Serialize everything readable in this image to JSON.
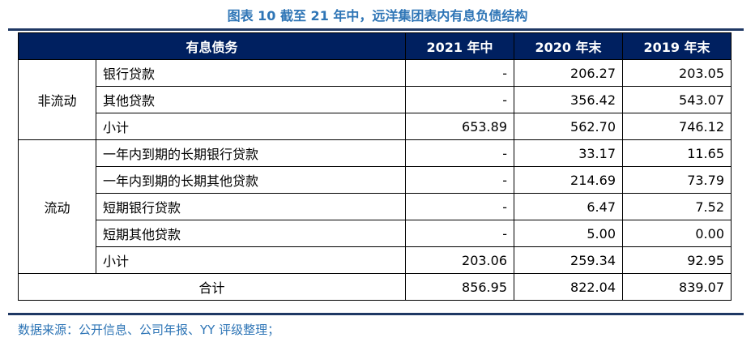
{
  "title": "图表 10 截至 21 年中，远洋集团表内有息负债结构",
  "header": [
    "有息债务",
    "2021 年中",
    "2020 年末",
    "2019 年末"
  ],
  "groups": [
    {
      "label": "非流动",
      "rows": [
        {
          "item": "银行贷款",
          "v": [
            "-",
            "206.27",
            "203.05"
          ]
        },
        {
          "item": "其他贷款",
          "v": [
            "-",
            "356.42",
            "543.07"
          ]
        },
        {
          "item": "小计",
          "v": [
            "653.89",
            "562.70",
            "746.12"
          ]
        }
      ]
    },
    {
      "label": "流动",
      "rows": [
        {
          "item": "一年内到期的长期银行贷款",
          "v": [
            "-",
            "33.17",
            "11.65"
          ]
        },
        {
          "item": "一年内到期的长期其他贷款",
          "v": [
            "-",
            "214.69",
            "73.79"
          ]
        },
        {
          "item": "短期银行贷款",
          "v": [
            "-",
            "6.47",
            "7.52"
          ]
        },
        {
          "item": "短期其他贷款",
          "v": [
            "-",
            "5.00",
            "0.00"
          ]
        },
        {
          "item": "小计",
          "v": [
            "203.06",
            "259.34",
            "92.95"
          ]
        }
      ]
    }
  ],
  "total": {
    "label": "合计",
    "v": [
      "856.95",
      "822.04",
      "839.07"
    ]
  },
  "source": "数据来源：公开信息、公司年报、YY 评级整理；",
  "colors": {
    "header_bg": "#002060",
    "accent": "#2e75b6"
  }
}
